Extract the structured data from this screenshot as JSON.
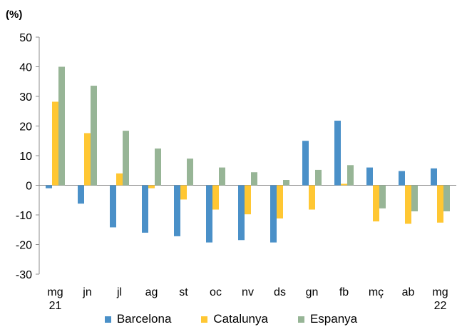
{
  "chart_data": {
    "type": "bar",
    "unit_label": "(%)",
    "categories": [
      [
        "mg",
        "21"
      ],
      [
        "jn"
      ],
      [
        "jl"
      ],
      [
        "ag"
      ],
      [
        "st"
      ],
      [
        "oc"
      ],
      [
        "nv"
      ],
      [
        "ds"
      ],
      [
        "gn"
      ],
      [
        "fb"
      ],
      [
        "mç"
      ],
      [
        "ab"
      ],
      [
        "mg",
        "22"
      ]
    ],
    "series": [
      {
        "name": "Barcelona",
        "color": "#4a90c8",
        "values": [
          -1,
          -6.2,
          -14.2,
          -16,
          -17.2,
          -19.3,
          -18.5,
          -19.3,
          15,
          21.8,
          6,
          4.8,
          5.7
        ]
      },
      {
        "name": "Catalunya",
        "color": "#ffc733",
        "values": [
          28.2,
          17.6,
          4,
          -1,
          -4.8,
          -8.2,
          -9.8,
          -11.2,
          -8.2,
          0.5,
          -12.2,
          -13,
          -12.6
        ]
      },
      {
        "name": "Espanya",
        "color": "#97b596",
        "values": [
          40,
          33.6,
          18.4,
          12.4,
          9,
          6,
          4.4,
          1.8,
          5.2,
          6.8,
          -7.8,
          -8.8,
          -8.8
        ]
      }
    ],
    "ylim": [
      -30,
      50
    ],
    "yticks": [
      -30,
      -20,
      -10,
      0,
      10,
      20,
      30,
      40,
      50
    ],
    "grid": false,
    "legend_position": "bottom"
  }
}
